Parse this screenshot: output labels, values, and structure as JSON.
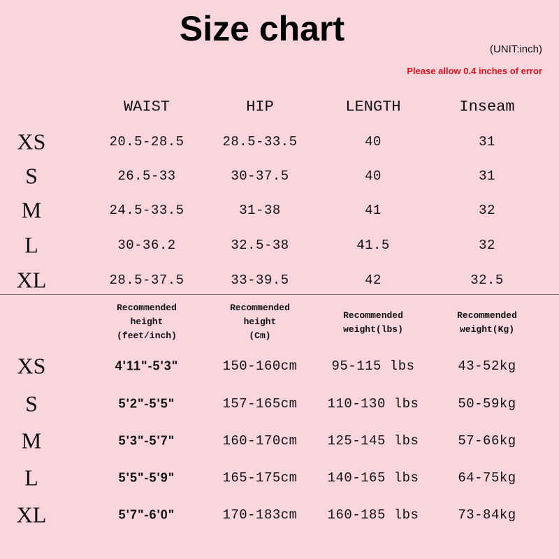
{
  "title": "Size chart",
  "unit_note": "(UNIT:inch)",
  "error_note": "Please allow 0.4 inches of error",
  "colors": {
    "background": "#f9d6dc",
    "error_text": "#e0141e"
  },
  "measurements": {
    "headers": [
      "WAIST",
      "HIP",
      "LENGTH",
      "Inseam"
    ],
    "rows": [
      {
        "size": "XS",
        "values": [
          "20.5-28.5",
          "28.5-33.5",
          "40",
          "31"
        ]
      },
      {
        "size": "S",
        "values": [
          "26.5-33",
          "30-37.5",
          "40",
          "31"
        ]
      },
      {
        "size": "M",
        "values": [
          "24.5-33.5",
          "31-38",
          "41",
          "32"
        ]
      },
      {
        "size": "L",
        "values": [
          "30-36.2",
          "32.5-38",
          "41.5",
          "32"
        ]
      },
      {
        "size": "XL",
        "values": [
          "28.5-37.5",
          "33-39.5",
          "42",
          "32.5"
        ]
      }
    ]
  },
  "recommendations": {
    "headers": [
      "Recommended\nheight\n(feet/inch)",
      "Recommended\nheight\n(Cm)",
      "Recommended\nweight(lbs)",
      "Recommended\nweight(Kg)"
    ],
    "rows": [
      {
        "size": "XS",
        "values": [
          "4'11\"-5'3\"",
          "150-160cm",
          "95-115 lbs",
          "43-52kg"
        ]
      },
      {
        "size": "S",
        "values": [
          "5'2\"-5'5\"",
          "157-165cm",
          "110-130 lbs",
          "50-59kg"
        ]
      },
      {
        "size": "M",
        "values": [
          "5'3\"-5'7\"",
          "160-170cm",
          "125-145 lbs",
          "57-66kg"
        ]
      },
      {
        "size": "L",
        "values": [
          "5'5\"-5'9\"",
          "165-175cm",
          "140-165 lbs",
          "64-75kg"
        ]
      },
      {
        "size": "XL",
        "values": [
          "5'7\"-6'0\"",
          "170-183cm",
          "160-185 lbs",
          "73-84kg"
        ]
      }
    ]
  }
}
